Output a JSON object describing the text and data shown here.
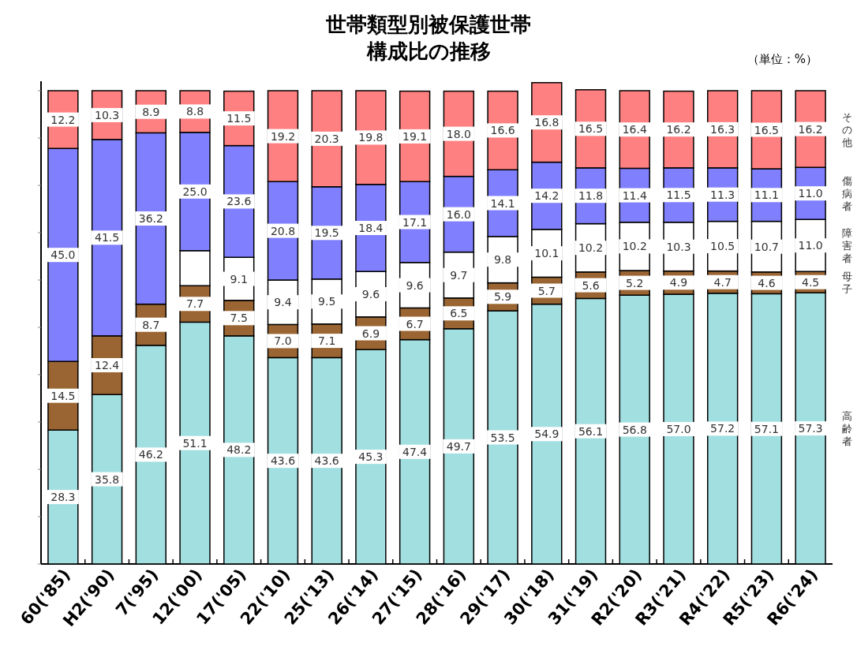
{
  "chart_data": {
    "type": "bar",
    "stacked": true,
    "title": "世帯類型別被保護世帯構成比の推移",
    "annotations": [
      "（単位：%）"
    ],
    "categories": [
      "60('85)",
      "H2('90)",
      "7('95)",
      "12('00)",
      "17('05)",
      "22('10)",
      "25('13)",
      "26('14)",
      "27('15)",
      "28('16)",
      "29('17)",
      "30('18)",
      "31('19)",
      "R2('20)",
      "R3('21)",
      "R4('22)",
      "R5('23)",
      "R6('24)"
    ],
    "series": [
      {
        "name": "高齢者",
        "color": "#a2dfe0",
        "values": [
          28.3,
          35.8,
          46.2,
          51.1,
          48.2,
          43.6,
          43.6,
          45.3,
          47.4,
          49.7,
          53.5,
          54.9,
          56.1,
          56.8,
          57.0,
          57.2,
          57.1,
          57.3
        ],
        "value_labels": [
          "28.3",
          "35.8",
          "46.2",
          "51.1",
          "48.2",
          "43.6",
          "43.6",
          "45.3",
          "47.4",
          "49.7",
          "53.5",
          "54.9",
          "56.1",
          "56.8",
          "57.0",
          "57.2",
          "57.1",
          "57.3"
        ]
      },
      {
        "name": "母子",
        "color": "#9a6532",
        "values": [
          14.5,
          12.4,
          8.7,
          7.7,
          7.5,
          7.0,
          7.1,
          6.9,
          6.7,
          6.5,
          5.9,
          5.7,
          5.6,
          5.2,
          4.9,
          4.7,
          4.6,
          4.5
        ],
        "value_labels": [
          "14.5",
          "12.4",
          "8.7",
          "7.7",
          "7.5",
          "7.0",
          "7.1",
          "6.9",
          "6.7",
          "6.5",
          "5.9",
          "5.7",
          "5.6",
          "5.2",
          "4.9",
          "4.7",
          "4.6",
          "4.5"
        ]
      },
      {
        "name": "障害者",
        "color": "#ffffff",
        "values": [
          null,
          null,
          null,
          7.4,
          9.1,
          9.4,
          9.5,
          9.6,
          9.6,
          9.7,
          9.8,
          10.1,
          10.2,
          10.2,
          10.3,
          10.5,
          10.7,
          11.0
        ],
        "value_labels": [
          null,
          null,
          null,
          null,
          "9.1",
          "9.4",
          "9.5",
          "9.6",
          "9.6",
          "9.7",
          "9.8",
          "10.1",
          "10.2",
          "10.2",
          "10.3",
          "10.5",
          "10.7",
          "11.0"
        ]
      },
      {
        "name": "傷病者",
        "color": "#8080ff",
        "values": [
          45.0,
          41.5,
          36.2,
          25.0,
          23.6,
          20.8,
          19.5,
          18.4,
          17.1,
          16.0,
          14.1,
          14.2,
          11.8,
          11.4,
          11.5,
          11.3,
          11.1,
          11.0
        ],
        "value_labels": [
          "45.0",
          "41.5",
          "36.2",
          "25.0",
          "23.6",
          "20.8",
          "19.5",
          "18.4",
          "17.1",
          "16.0",
          "14.1",
          "14.2",
          "11.8",
          "11.4",
          "11.5",
          "11.3",
          "11.1",
          "11.0"
        ]
      },
      {
        "name": "その他",
        "color": "#ff8080",
        "values": [
          12.2,
          10.3,
          8.9,
          8.8,
          11.5,
          19.2,
          20.3,
          19.8,
          19.1,
          18.0,
          16.6,
          16.8,
          16.5,
          16.4,
          16.2,
          16.3,
          16.5,
          16.2
        ],
        "value_labels": [
          "12.2",
          "10.3",
          "8.9",
          "8.8",
          "11.5",
          "19.2",
          "20.3",
          "19.8",
          "19.1",
          "18.0",
          "16.6",
          "16.8",
          "16.5",
          "16.4",
          "16.2",
          "16.3",
          "16.5",
          "16.2"
        ]
      }
    ],
    "ylim": [
      0,
      102
    ],
    "yticks": [
      {
        "value": 0,
        "label": null
      },
      {
        "value": 10,
        "label": null
      },
      {
        "value": 20,
        "label": null
      },
      {
        "value": 30,
        "label": null
      },
      {
        "value": 40,
        "label": null
      },
      {
        "value": 50,
        "label": null
      },
      {
        "value": 60,
        "label": null
      },
      {
        "value": 70,
        "label": null
      },
      {
        "value": 80,
        "label": null
      },
      {
        "value": 90,
        "label": null
      },
      {
        "value": 100,
        "label": null
      }
    ],
    "tick_labels": "x",
    "legend": "right"
  }
}
